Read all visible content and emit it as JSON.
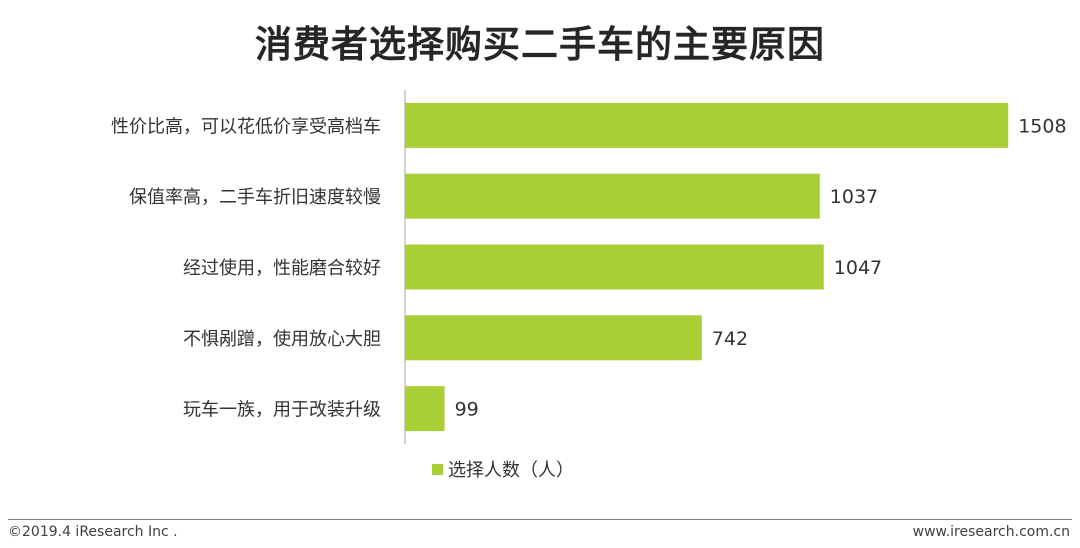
{
  "title": "消费者选择购买二手车的主要原因",
  "footer": {
    "copyright": "©2019.4 iResearch Inc .",
    "website": "www.iresearch.com.cn"
  },
  "chart_data": {
    "type": "bar",
    "orientation": "horizontal",
    "title": "消费者选择购买二手车的主要原因",
    "categories": [
      "性价比高，可以花低价享受高档车",
      "保值率高，二手车折旧速度较慢",
      "经过使用，性能磨合较好",
      "不惧剐蹭，使用放心大胆",
      "玩车一族，用于改装升级"
    ],
    "series": [
      {
        "name": "选择人数（人）",
        "values": [
          1508,
          1037,
          1047,
          742,
          99
        ],
        "color": "#a8cf36"
      }
    ],
    "xlim": [
      0,
      1600
    ],
    "grid": false,
    "legend": "bottom",
    "data_labels": true
  }
}
